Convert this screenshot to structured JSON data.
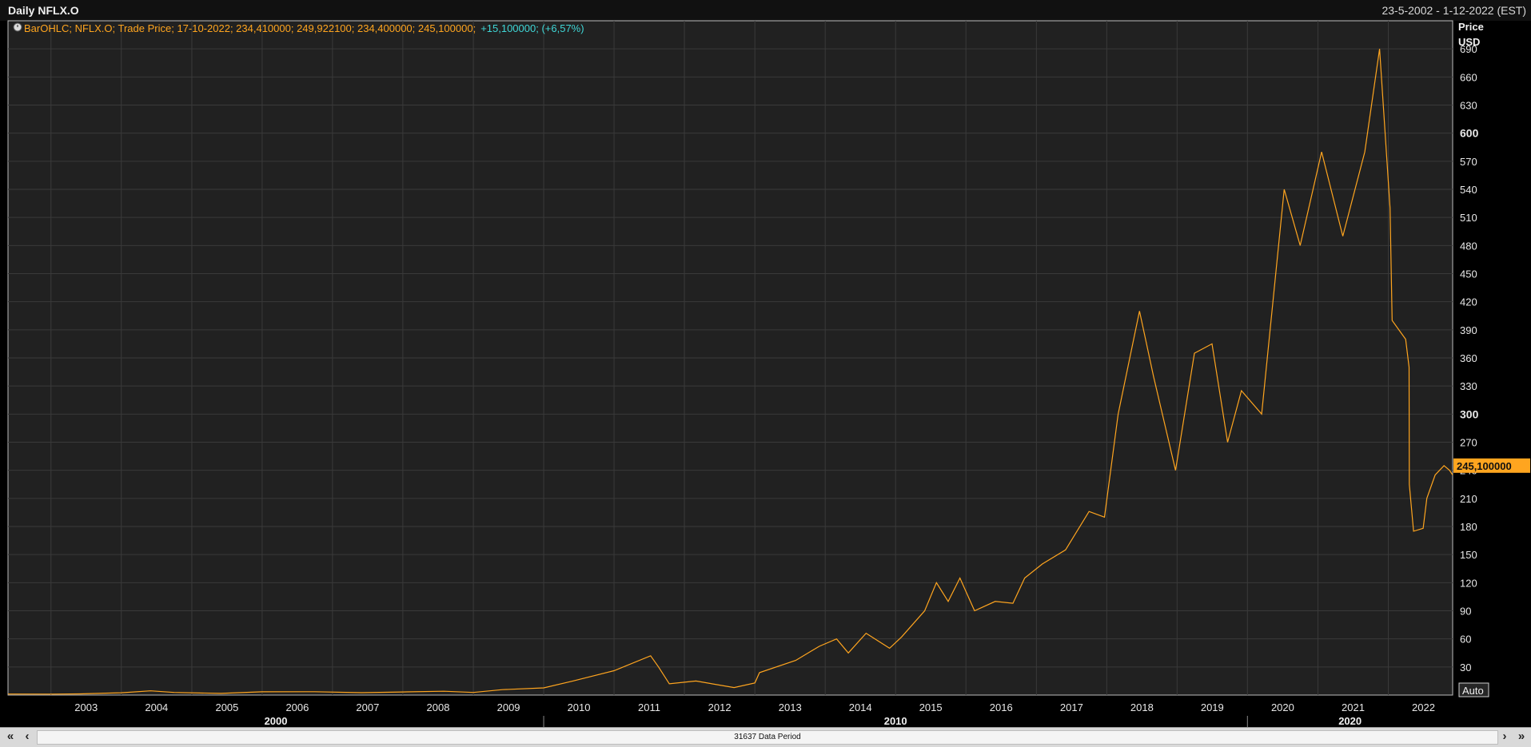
{
  "window": {
    "title": "Daily NFLX.O",
    "date_range": "23-5-2002 - 1-12-2022 (EST)"
  },
  "legend_text": "BarOHLC; NFLX.O; Trade Price; 17-10-2022; 234,410000; 249,922100; 234,400000; 245,100000;",
  "legend_change": "+15,100000; (+6,57%)",
  "y_axis": {
    "title": "Price",
    "unit": "USD",
    "ticks": [
      "30",
      "60",
      "90",
      "120",
      "150",
      "180",
      "210",
      "240",
      "270",
      "300",
      "330",
      "360",
      "390",
      "420",
      "450",
      "480",
      "510",
      "540",
      "570",
      "600",
      "630",
      "660",
      "690"
    ],
    "bold_ticks": [
      "300",
      "600"
    ]
  },
  "last_price_label": "245,100000",
  "auto_button": "Auto",
  "x_axis": {
    "year_ticks": [
      "2003",
      "2004",
      "2005",
      "2006",
      "2007",
      "2008",
      "2009",
      "2010",
      "2011",
      "2012",
      "2013",
      "2014",
      "2015",
      "2016",
      "2017",
      "2018",
      "2019",
      "2020",
      "2021",
      "2022"
    ],
    "decade_labels": [
      "2000",
      "2010",
      "2020"
    ]
  },
  "scrollbar": {
    "first": "«",
    "prev": "‹",
    "next": "›",
    "last": "»",
    "period_label": "31637 Data Period"
  },
  "colors": {
    "line": "#ffa51f",
    "change": "#3fd6d6",
    "background": "#212121",
    "grid": "#3a3a3a"
  },
  "chart_data": {
    "type": "line",
    "title": "Daily NFLX.O",
    "ylabel": "Price USD",
    "xlim": [
      "2002-05-23",
      "2022-12-01"
    ],
    "ylim": [
      0,
      720
    ],
    "grid": true,
    "series": [
      {
        "points": [
          [
            "2002-05-23",
            1.1
          ],
          [
            "2003-01-01",
            1.0
          ],
          [
            "2003-06-01",
            1.3
          ],
          [
            "2004-01-01",
            2.5
          ],
          [
            "2004-06-01",
            4.5
          ],
          [
            "2004-10-01",
            2.8
          ],
          [
            "2005-06-01",
            1.8
          ],
          [
            "2006-01-01",
            3.5
          ],
          [
            "2006-10-01",
            3.6
          ],
          [
            "2007-06-01",
            2.6
          ],
          [
            "2008-01-01",
            3.3
          ],
          [
            "2008-08-01",
            4.1
          ],
          [
            "2009-01-01",
            2.8
          ],
          [
            "2009-06-01",
            5.8
          ],
          [
            "2010-01-01",
            7.7
          ],
          [
            "2010-06-01",
            15
          ],
          [
            "2011-01-01",
            26
          ],
          [
            "2011-07-10",
            42
          ],
          [
            "2011-08-20",
            30
          ],
          [
            "2011-10-15",
            12
          ],
          [
            "2012-03-01",
            15
          ],
          [
            "2012-09-15",
            8
          ],
          [
            "2013-01-01",
            13
          ],
          [
            "2013-01-25",
            24
          ],
          [
            "2013-08-01",
            37
          ],
          [
            "2013-12-01",
            52
          ],
          [
            "2014-03-01",
            60
          ],
          [
            "2014-05-01",
            45
          ],
          [
            "2014-08-01",
            66
          ],
          [
            "2014-12-01",
            50
          ],
          [
            "2015-02-01",
            62
          ],
          [
            "2015-06-01",
            90
          ],
          [
            "2015-08-01",
            120
          ],
          [
            "2015-10-01",
            100
          ],
          [
            "2015-12-01",
            125
          ],
          [
            "2016-02-15",
            90
          ],
          [
            "2016-06-01",
            100
          ],
          [
            "2016-09-01",
            98
          ],
          [
            "2016-11-01",
            125
          ],
          [
            "2017-02-01",
            140
          ],
          [
            "2017-06-01",
            155
          ],
          [
            "2017-10-01",
            196
          ],
          [
            "2017-12-20",
            190
          ],
          [
            "2018-03-01",
            300
          ],
          [
            "2018-06-20",
            410
          ],
          [
            "2018-09-01",
            340
          ],
          [
            "2018-12-24",
            240
          ],
          [
            "2019-04-01",
            365
          ],
          [
            "2019-07-01",
            375
          ],
          [
            "2019-09-20",
            270
          ],
          [
            "2019-12-01",
            325
          ],
          [
            "2020-03-15",
            300
          ],
          [
            "2020-07-10",
            540
          ],
          [
            "2020-10-01",
            480
          ],
          [
            "2021-01-20",
            580
          ],
          [
            "2021-05-10",
            490
          ],
          [
            "2021-09-01",
            580
          ],
          [
            "2021-11-17",
            690
          ],
          [
            "2022-01-10",
            520
          ],
          [
            "2022-01-21",
            400
          ],
          [
            "2022-04-01",
            380
          ],
          [
            "2022-04-19",
            350
          ],
          [
            "2022-04-20",
            225
          ],
          [
            "2022-05-12",
            175
          ],
          [
            "2022-07-01",
            178
          ],
          [
            "2022-07-20",
            210
          ],
          [
            "2022-09-01",
            235
          ],
          [
            "2022-10-17",
            245
          ],
          [
            "2022-11-15",
            240
          ],
          [
            "2022-12-01",
            235
          ]
        ]
      }
    ]
  }
}
